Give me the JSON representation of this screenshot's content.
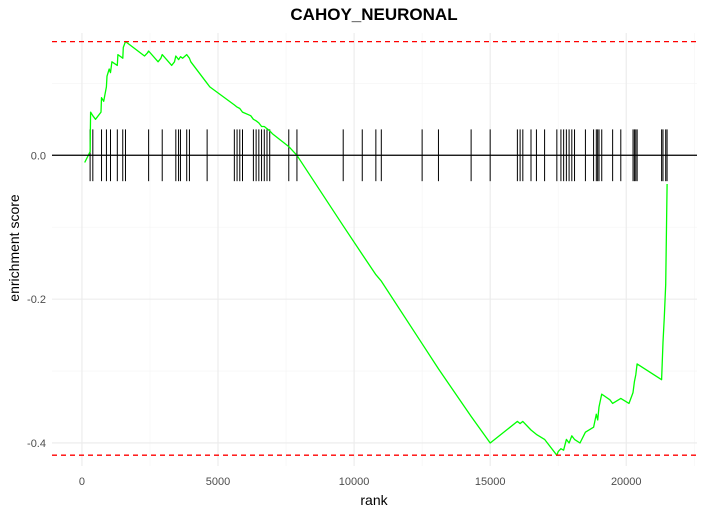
{
  "chart_data": {
    "type": "line",
    "title": "CAHOY_NEURONAL",
    "xlabel": "rank",
    "ylabel": "enrichment score",
    "xlim": [
      -1100,
      22600
    ],
    "ylim": [
      -0.432,
      0.17
    ],
    "x_ticks": [
      0,
      5000,
      10000,
      15000,
      20000
    ],
    "y_ticks": [
      0.0,
      -0.2,
      -0.4
    ],
    "x_tick_labels": [
      "0",
      "5000",
      "10000",
      "15000",
      "20000"
    ],
    "y_tick_labels": [
      "0.0",
      "-0.2",
      "-0.4"
    ],
    "grid": true,
    "colors": {
      "running_score": "#00ff00",
      "threshold": "#ff0000",
      "gene_hits": "#000000",
      "zero_line": "#000000"
    },
    "thresholds": {
      "max_es": 0.158,
      "min_es": -0.417
    },
    "zero_line": 0.0,
    "hit_tick_halfheight_es": 0.036,
    "hit_positions": [
      300,
      400,
      720,
      900,
      1050,
      1300,
      1500,
      1600,
      2450,
      2950,
      3450,
      3550,
      3620,
      3850,
      3950,
      4600,
      5600,
      5700,
      5800,
      5900,
      6300,
      6400,
      6500,
      6600,
      6700,
      6800,
      6900,
      7600,
      7900,
      9600,
      10300,
      10800,
      11000,
      12500,
      13100,
      14300,
      15000,
      16000,
      16100,
      16200,
      16500,
      16700,
      17000,
      17450,
      17600,
      17700,
      17800,
      17900,
      18000,
      18100,
      18500,
      18800,
      18900,
      18950,
      19000,
      19100,
      19500,
      19800,
      20250,
      20300,
      20350,
      20400,
      21300,
      21350,
      21450,
      21500
    ],
    "series": [
      {
        "x": [
          100,
          300,
          320,
          400,
          500,
          700,
          720,
          800,
          900,
          920,
          1000,
          1050,
          1100,
          1300,
          1320,
          1500,
          1520,
          1600,
          2300,
          2400,
          2450,
          2800,
          2900,
          2950,
          3300,
          3400,
          3450,
          3550,
          3620,
          3700,
          3850,
          3950,
          4000,
          4600,
          4700,
          5600,
          5700,
          5800,
          5900,
          6200,
          6300,
          6400,
          6500,
          6600,
          6700,
          6800,
          6900,
          7000,
          7600,
          7900,
          9600,
          10300,
          10800,
          11000,
          12500,
          13100,
          14300,
          15000,
          16000,
          16100,
          16200,
          16500,
          16700,
          17000,
          17450,
          17500,
          17600,
          17700,
          17800,
          17900,
          18000,
          18100,
          18300,
          18500,
          18800,
          18900,
          18950,
          19000,
          19100,
          19400,
          19500,
          19800,
          20100,
          20250,
          20300,
          20350,
          20400,
          21300,
          21350,
          21400,
          21450,
          21500
        ],
        "y": [
          -0.01,
          0.005,
          0.06,
          0.055,
          0.05,
          0.06,
          0.08,
          0.075,
          0.095,
          0.11,
          0.12,
          0.115,
          0.13,
          0.125,
          0.14,
          0.135,
          0.15,
          0.158,
          0.138,
          0.142,
          0.145,
          0.13,
          0.135,
          0.14,
          0.125,
          0.13,
          0.138,
          0.133,
          0.137,
          0.135,
          0.14,
          0.135,
          0.13,
          0.1,
          0.095,
          0.07,
          0.067,
          0.065,
          0.06,
          0.055,
          0.05,
          0.048,
          0.045,
          0.04,
          0.04,
          0.037,
          0.034,
          0.03,
          0.012,
          0.0,
          -0.098,
          -0.138,
          -0.166,
          -0.175,
          -0.262,
          -0.297,
          -0.363,
          -0.4,
          -0.37,
          -0.373,
          -0.37,
          -0.382,
          -0.388,
          -0.395,
          -0.417,
          -0.412,
          -0.408,
          -0.41,
          -0.395,
          -0.4,
          -0.39,
          -0.395,
          -0.4,
          -0.385,
          -0.378,
          -0.36,
          -0.368,
          -0.35,
          -0.332,
          -0.34,
          -0.345,
          -0.338,
          -0.345,
          -0.33,
          -0.315,
          -0.305,
          -0.29,
          -0.312,
          -0.26,
          -0.225,
          -0.18,
          -0.04
        ]
      }
    ]
  }
}
